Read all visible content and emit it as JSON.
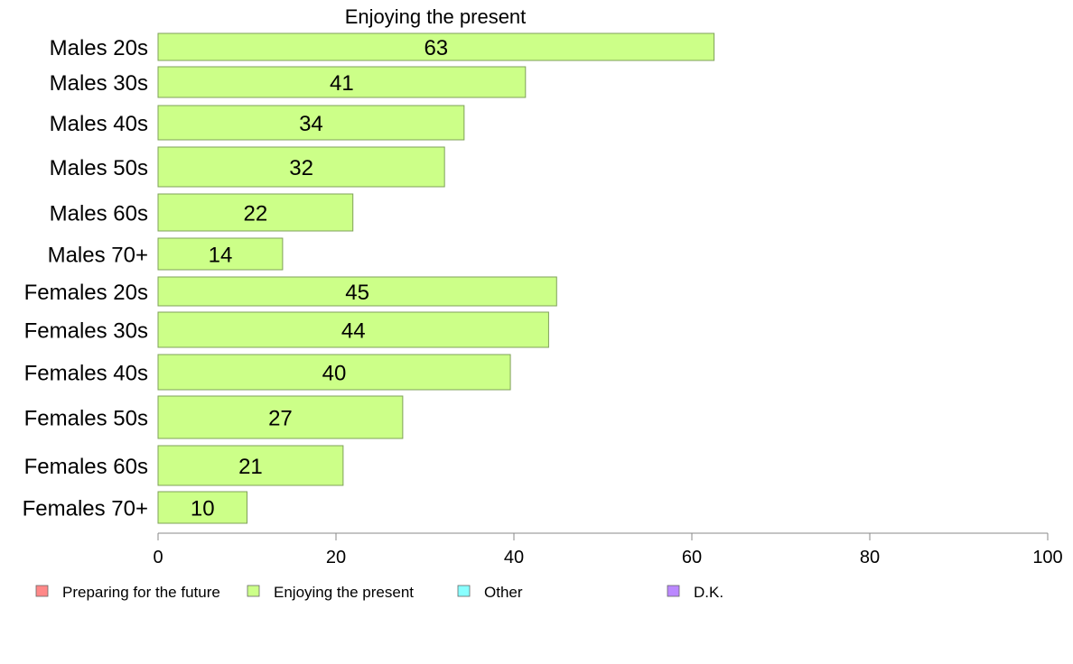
{
  "chart_data": {
    "type": "bar",
    "orientation": "horizontal",
    "title": "Enjoying the present",
    "categories": [
      "Males 20s",
      "Males 30s",
      "Males 40s",
      "Males 50s",
      "Males 60s",
      "Males 70+",
      "Females 20s",
      "Females 30s",
      "Females 40s",
      "Females 50s",
      "Females 60s",
      "Females 70+"
    ],
    "series": [
      {
        "name": "Enjoying the present",
        "color": "#ccff88",
        "values": [
          62.5,
          41.3,
          34.4,
          32.2,
          21.9,
          14.0,
          44.8,
          43.9,
          39.6,
          27.5,
          20.8,
          10.0
        ],
        "labels": [
          "63",
          "41",
          "34",
          "32",
          "22",
          "14",
          "45",
          "44",
          "40",
          "27",
          "21",
          "10"
        ]
      }
    ],
    "xlim": [
      0,
      100
    ],
    "xticks": [
      0,
      20,
      40,
      60,
      80,
      100
    ],
    "xtick_labels": [
      "0",
      "20",
      "40",
      "60",
      "80",
      "100"
    ],
    "grid": false,
    "legend": {
      "placement": "bottom-left",
      "items": [
        {
          "label": "Preparing for the future",
          "color": "#ff8888"
        },
        {
          "label": "Enjoying the present",
          "color": "#ccff88"
        },
        {
          "label": "Other",
          "color": "#88ffff"
        },
        {
          "label": "D.K.",
          "color": "#bb88ff"
        }
      ]
    },
    "colors": {
      "bar_stroke": "#7fa05a",
      "axis": "#888888",
      "text": "#000000"
    }
  }
}
